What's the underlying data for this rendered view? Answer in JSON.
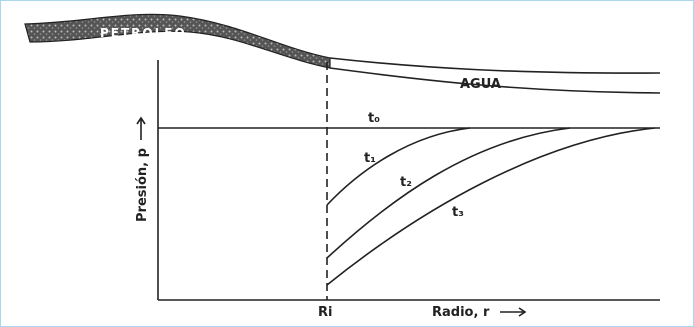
{
  "labels": {
    "oil": "PETROLEO",
    "water": "AGUA",
    "y_axis": "Presión, p",
    "x_axis": "Radio, r",
    "radius_mark": "Ri"
  },
  "curves": [
    "t₀",
    "t₁",
    "t₂",
    "t₃"
  ]
}
